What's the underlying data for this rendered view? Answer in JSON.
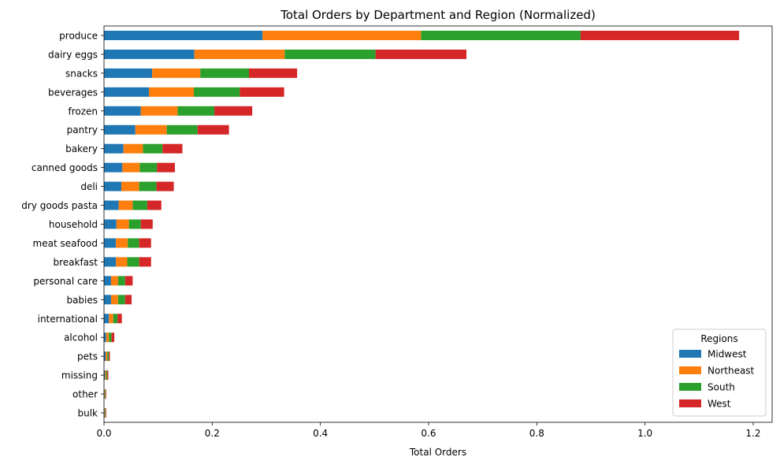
{
  "chart_data": {
    "type": "bar",
    "orientation": "horizontal",
    "stacked": true,
    "title": "Total Orders by Department and Region (Normalized)",
    "xlabel": "Total Orders",
    "ylabel": "",
    "xlim": [
      0,
      1.235
    ],
    "xticks": [
      "0.0",
      "0.2",
      "0.4",
      "0.6",
      "0.8",
      "1.0",
      "1.2"
    ],
    "categories": [
      "produce",
      "dairy eggs",
      "snacks",
      "beverages",
      "frozen",
      "pantry",
      "bakery",
      "canned goods",
      "deli",
      "dry goods pasta",
      "household",
      "meat seafood",
      "breakfast",
      "personal care",
      "babies",
      "international",
      "alcohol",
      "pets",
      "missing",
      "other",
      "bulk"
    ],
    "series": [
      {
        "name": "Midwest",
        "color": "#1f77b4",
        "values": [
          0.293,
          0.167,
          0.089,
          0.083,
          0.068,
          0.058,
          0.036,
          0.034,
          0.032,
          0.027,
          0.023,
          0.022,
          0.022,
          0.013,
          0.013,
          0.009,
          0.004,
          0.003,
          0.002,
          0.001,
          0.001
        ]
      },
      {
        "name": "Northeast",
        "color": "#ff7f0e",
        "values": [
          0.293,
          0.167,
          0.089,
          0.083,
          0.068,
          0.058,
          0.036,
          0.032,
          0.033,
          0.026,
          0.023,
          0.022,
          0.021,
          0.013,
          0.013,
          0.008,
          0.005,
          0.003,
          0.002,
          0.001,
          0.001
        ]
      },
      {
        "name": "South",
        "color": "#2ca02c",
        "values": [
          0.295,
          0.168,
          0.09,
          0.085,
          0.068,
          0.057,
          0.036,
          0.032,
          0.032,
          0.027,
          0.022,
          0.021,
          0.022,
          0.013,
          0.013,
          0.008,
          0.005,
          0.003,
          0.002,
          0.001,
          0.001
        ]
      },
      {
        "name": "West",
        "color": "#d62728",
        "values": [
          0.293,
          0.168,
          0.089,
          0.082,
          0.07,
          0.058,
          0.037,
          0.033,
          0.032,
          0.026,
          0.022,
          0.022,
          0.022,
          0.014,
          0.012,
          0.008,
          0.005,
          0.002,
          0.002,
          0.001,
          0.001
        ]
      }
    ],
    "legend": {
      "title": "Regions",
      "position": "lower-right"
    },
    "grid": false
  }
}
